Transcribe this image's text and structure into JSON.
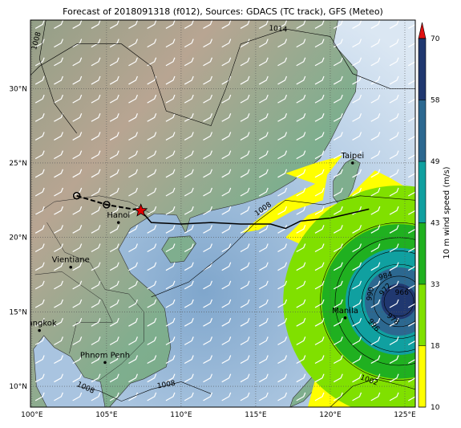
{
  "title": "Forecast of 2018091318 (f012), Sources: GDACS (TC track), GFS (Meteo)",
  "map": {
    "lon_range": [
      99.9,
      125.7
    ],
    "lat_range": [
      8.6,
      34.6
    ],
    "lon_ticks": [
      {
        "value": 100,
        "label": "100°E"
      },
      {
        "value": 105,
        "label": "105°E"
      },
      {
        "value": 110,
        "label": "110°E"
      },
      {
        "value": 115,
        "label": "115°E"
      },
      {
        "value": 120,
        "label": "120°E"
      },
      {
        "value": 125,
        "label": "125°E"
      }
    ],
    "lat_ticks": [
      {
        "value": 10,
        "label": "10°N"
      },
      {
        "value": 15,
        "label": "15°N"
      },
      {
        "value": 20,
        "label": "20°N"
      },
      {
        "value": 25,
        "label": "25°N"
      },
      {
        "value": 30,
        "label": "30°N"
      }
    ],
    "cities": [
      {
        "name": "Taipei",
        "lon": 121.5,
        "lat": 25.0
      },
      {
        "name": "Hanoi",
        "lon": 105.8,
        "lat": 21.0
      },
      {
        "name": "Vientiane",
        "lon": 102.6,
        "lat": 18.0
      },
      {
        "name": "Manila",
        "lon": 121.0,
        "lat": 14.6
      },
      {
        "name": "Bangkok",
        "lon": 100.5,
        "lat": 13.75
      },
      {
        "name": "Phnom Penh",
        "lon": 104.9,
        "lat": 11.6
      }
    ],
    "isobar_labels": [
      {
        "text": "1014",
        "lon": 116.5,
        "lat": 34.0,
        "angle": 5
      },
      {
        "text": "1008",
        "lon": 100.3,
        "lat": 33.2,
        "angle": -75
      },
      {
        "text": "1008",
        "lon": 115.5,
        "lat": 21.9,
        "angle": -35
      },
      {
        "text": "1008",
        "lon": 109.0,
        "lat": 10.1,
        "angle": -10
      },
      {
        "text": "1008",
        "lon": 103.6,
        "lat": 9.9,
        "angle": 25
      },
      {
        "text": "984",
        "lon": 123.7,
        "lat": 17.4,
        "angle": -15
      },
      {
        "text": "990",
        "lon": 122.7,
        "lat": 16.2,
        "angle": -80
      },
      {
        "text": "972",
        "lon": 123.7,
        "lat": 16.5,
        "angle": -50
      },
      {
        "text": "966",
        "lon": 124.8,
        "lat": 16.3,
        "angle": 0
      },
      {
        "text": "978",
        "lon": 124.2,
        "lat": 14.5,
        "angle": 40
      },
      {
        "text": "996",
        "lon": 122.9,
        "lat": 14.1,
        "angle": 50
      },
      {
        "text": "1002",
        "lon": 122.6,
        "lat": 10.4,
        "angle": 20
      }
    ]
  },
  "colorbar": {
    "label": "10 m wind speed (m/s)",
    "ticks": [
      10,
      18,
      33,
      43,
      49,
      58,
      70
    ],
    "colors": [
      "#ffff00",
      "#80e000",
      "#20b020",
      "#10a0a0",
      "#2c6890",
      "#203870"
    ],
    "extend_color": "#e01010"
  }
}
